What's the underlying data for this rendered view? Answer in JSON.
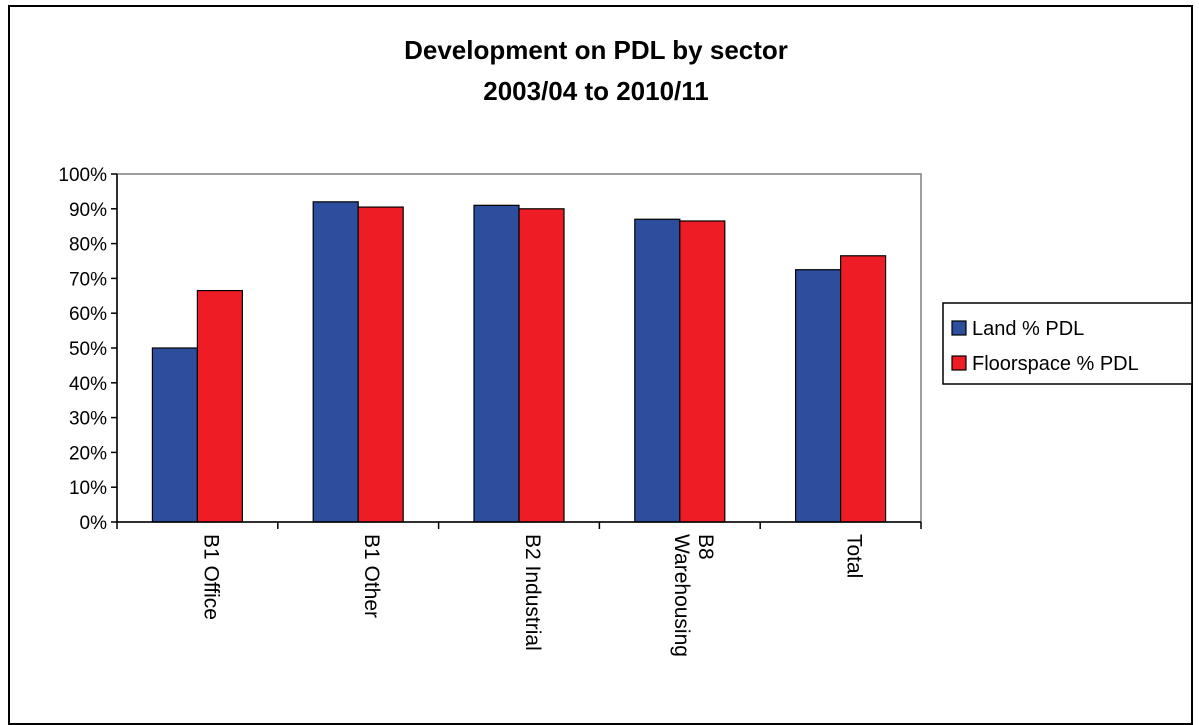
{
  "chart_data": {
    "type": "bar",
    "title": [
      "Development on PDL by sector",
      "2003/04 to 2010/11"
    ],
    "categories": [
      [
        "B1 Office"
      ],
      [
        "B1 Other"
      ],
      [
        "B2 Industrial"
      ],
      [
        "B8",
        "Warehousing"
      ],
      [
        "Total"
      ]
    ],
    "series": [
      {
        "name": "Land % PDL",
        "color": "#2c4e9c",
        "values": [
          50,
          92,
          91,
          87,
          72.5
        ]
      },
      {
        "name": "Floorspace % PDL",
        "color": "#ee1c25",
        "values": [
          66.5,
          90.5,
          90,
          86.5,
          76.5
        ]
      }
    ],
    "ylim": [
      0,
      100
    ],
    "yticks": [
      "0%",
      "10%",
      "20%",
      "30%",
      "40%",
      "50%",
      "60%",
      "70%",
      "80%",
      "90%",
      "100%"
    ],
    "grid": false,
    "legend_position": "right"
  }
}
